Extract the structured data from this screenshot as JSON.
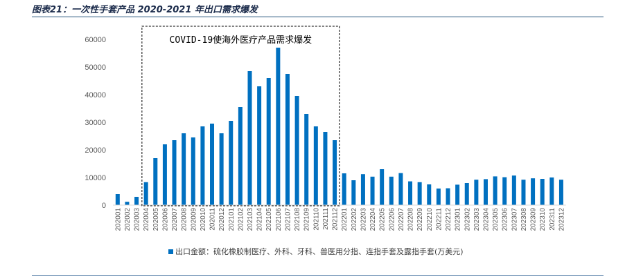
{
  "figure_title": "图表21：一次性手套产品 2020-2021 年出口需求爆发",
  "chart_data": {
    "type": "bar",
    "categories": [
      "202001",
      "202002",
      "202003",
      "202004",
      "202005",
      "202006",
      "202007",
      "202008",
      "202009",
      "202010",
      "202011",
      "202012",
      "202101",
      "202102",
      "202103",
      "202104",
      "202105",
      "202106",
      "202107",
      "202108",
      "202109",
      "202110",
      "202111",
      "202112",
      "202201",
      "202202",
      "202203",
      "202204",
      "202205",
      "202206",
      "202207",
      "202208",
      "202209",
      "202210",
      "202211",
      "202212",
      "202301",
      "202302",
      "202303",
      "202304",
      "202305",
      "202306",
      "202307",
      "202308",
      "202309",
      "202310",
      "202311",
      "202312"
    ],
    "series": [
      {
        "name": "出口金额：硫化橡胶制医疗、外科、牙科、兽医用分指、连指手套及露指手套(万美元)",
        "values": [
          4000,
          1200,
          3000,
          8300,
          17000,
          22000,
          23500,
          26000,
          24500,
          28500,
          29500,
          26000,
          30500,
          35500,
          48500,
          43000,
          46000,
          57000,
          47500,
          39500,
          33000,
          28500,
          26500,
          23500,
          11500,
          9000,
          11200,
          10300,
          13000,
          10300,
          11600,
          8600,
          8300,
          7500,
          6000,
          6100,
          7400,
          8000,
          9200,
          9400,
          10400,
          10100,
          10700,
          9200,
          9700,
          9500,
          10000,
          9200
        ]
      }
    ],
    "yticks": [
      0,
      10000,
      20000,
      30000,
      40000,
      50000,
      60000
    ],
    "ylim": [
      0,
      62000
    ],
    "bar_color": "#0070c0",
    "grid": false,
    "legend_position": "bottom-center",
    "annotation": {
      "text": "COVID-19使海外医疗产品需求爆发",
      "from_category": "202004",
      "to_category": "202112",
      "style": "dashed-box"
    }
  }
}
